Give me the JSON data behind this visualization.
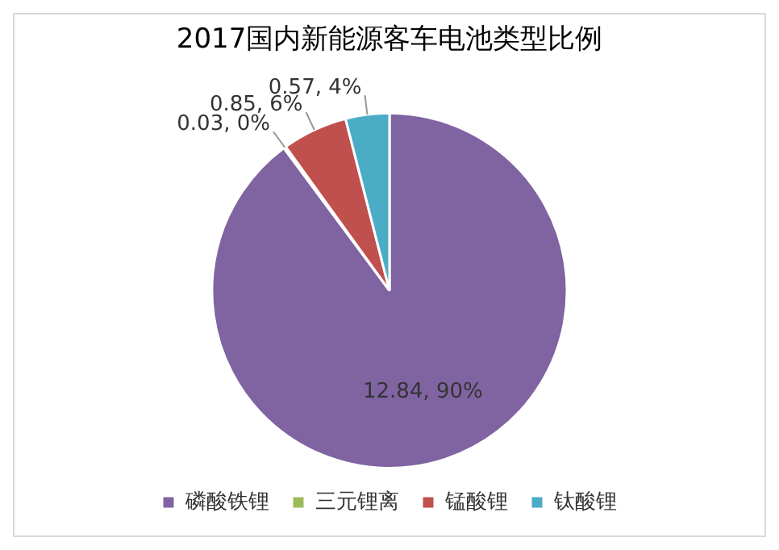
{
  "chart_data": {
    "type": "pie",
    "title": "2017国内新能源客车电池类型比例",
    "categories": [
      "磷酸铁锂",
      "三元锂离",
      "锰酸锂",
      "钛酸锂"
    ],
    "values": [
      12.84,
      0.03,
      0.85,
      0.57
    ],
    "colors": [
      "#8064a2",
      "#9bbb59",
      "#c0504d",
      "#4bacc6"
    ],
    "value_labels": [
      "12.84, 90%",
      "0.03, 0%",
      "0.85, 6%",
      "0.57, 4%"
    ],
    "legend": "bottom"
  }
}
